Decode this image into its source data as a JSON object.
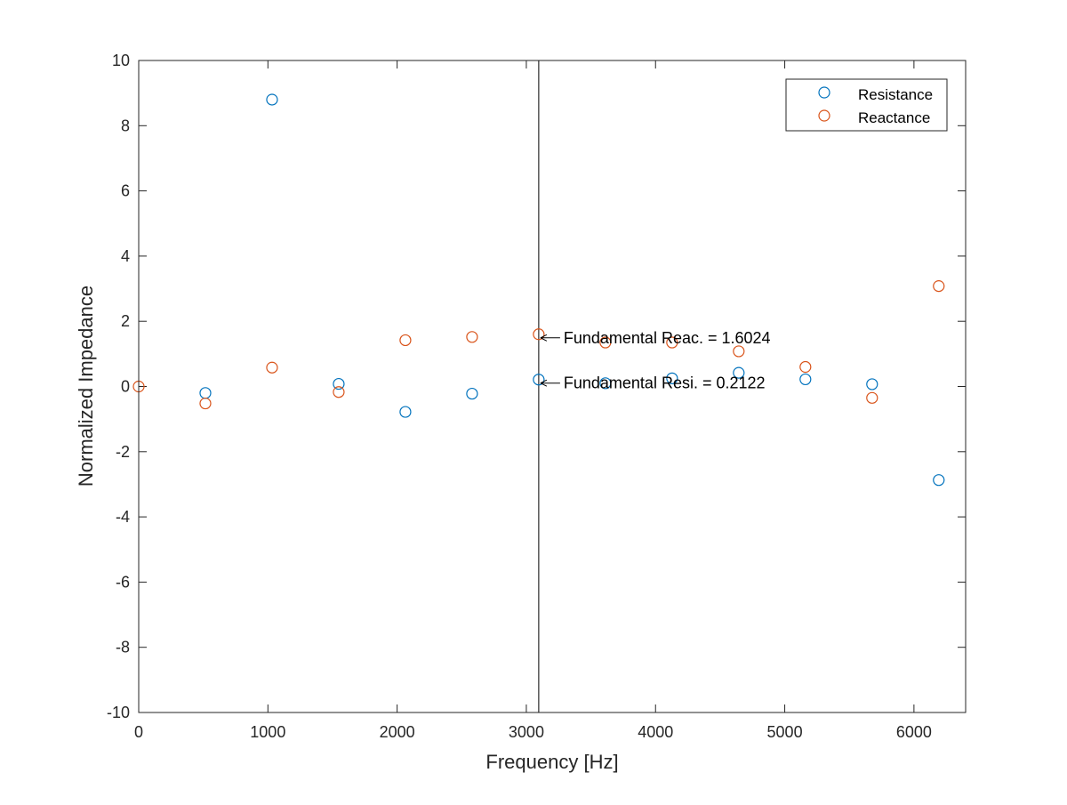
{
  "chart_data": {
    "type": "scatter",
    "title": "",
    "xlabel": "Frequency [Hz]",
    "ylabel": "Normalized Impedance",
    "xlim": [
      0,
      6400
    ],
    "ylim": [
      -10,
      10
    ],
    "xticks": [
      0,
      1000,
      2000,
      3000,
      4000,
      5000,
      6000
    ],
    "yticks": [
      -10,
      -8,
      -6,
      -4,
      -2,
      0,
      2,
      4,
      6,
      8,
      10
    ],
    "grid": false,
    "legend_position": "top-right",
    "colors": {
      "resistance": "#0072BD",
      "reactance": "#D95319",
      "axis": "#262626",
      "cursor_line": "#000000"
    },
    "x": [
      0,
      516,
      1032,
      1548,
      2064,
      2580,
      3096,
      3612,
      4128,
      4644,
      5160,
      5676,
      6192
    ],
    "series": [
      {
        "name": "Resistance",
        "marker": "open-circle",
        "values": [
          null,
          -0.2,
          8.8,
          0.08,
          -0.78,
          -0.22,
          0.2122,
          0.1,
          0.25,
          0.42,
          0.22,
          0.07,
          -2.87
        ]
      },
      {
        "name": "Reactance",
        "marker": "open-circle",
        "values": [
          0.0,
          -0.52,
          0.58,
          -0.17,
          1.42,
          1.52,
          1.6024,
          1.35,
          1.35,
          1.08,
          0.6,
          -0.35,
          3.08
        ]
      }
    ],
    "vertical_line": {
      "x": 3096
    },
    "annotations": [
      {
        "text": "Fundamental Reac. = 1.6024",
        "x": 3096,
        "y": 1.6024
      },
      {
        "text": "Fundamental Resi. = 0.2122",
        "x": 3096,
        "y": 0.2122
      }
    ]
  }
}
